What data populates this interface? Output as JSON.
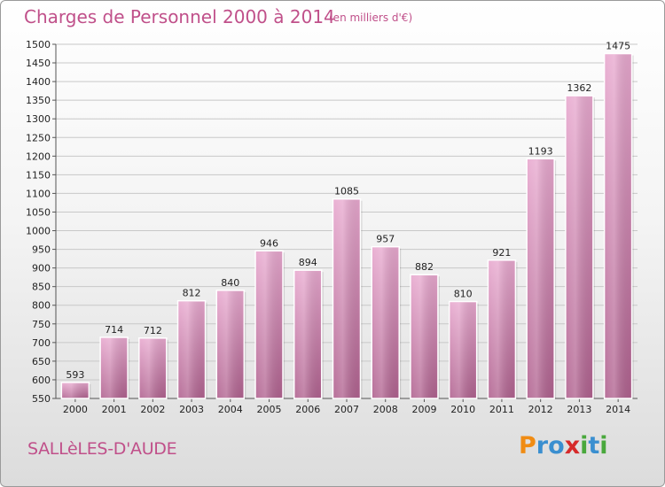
{
  "header": {
    "title": "Charges de Personnel 2000 à 2014",
    "subtitle": "(en milliers d'€)"
  },
  "footer": {
    "commune": "SALLèLES-D'AUDE",
    "logo_text": "Proxiti",
    "logo_letters": [
      "P",
      "r",
      "o",
      "x",
      "i",
      "t",
      "i"
    ],
    "logo_colors": [
      "#f08c14",
      "#3a8fd0",
      "#3a8fd0",
      "#d62a2a",
      "#49a83c",
      "#3a8fd0",
      "#49a83c"
    ]
  },
  "colors": {
    "bar_top": "#e8a9cf",
    "bar_bottom": "#b0628f",
    "accent": "#c0508a"
  },
  "chart_data": {
    "type": "bar",
    "title": "Charges de Personnel 2000 à 2014",
    "subtitle": "(en milliers d'€)",
    "categories": [
      "2000",
      "2001",
      "2002",
      "2003",
      "2004",
      "2005",
      "2006",
      "2007",
      "2008",
      "2009",
      "2010",
      "2011",
      "2012",
      "2013",
      "2014"
    ],
    "values": [
      593,
      714,
      712,
      812,
      840,
      946,
      894,
      1085,
      957,
      882,
      810,
      921,
      1193,
      1362,
      1475
    ],
    "ylim": [
      550,
      1500
    ],
    "yticks": [
      550,
      600,
      650,
      700,
      750,
      800,
      850,
      900,
      950,
      1000,
      1050,
      1100,
      1150,
      1200,
      1250,
      1300,
      1350,
      1400,
      1450,
      1500
    ],
    "grid": true,
    "legend": "none",
    "xlabel": "",
    "ylabel": ""
  }
}
